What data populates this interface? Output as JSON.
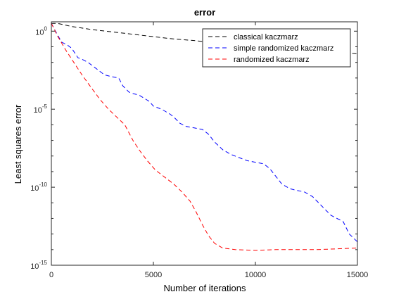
{
  "chart_data": {
    "type": "line",
    "title": "error",
    "xlabel": "Number of iterations",
    "ylabel": "Least squares error",
    "xlim": [
      0,
      15000
    ],
    "ylim_log10": [
      -15,
      0.6
    ],
    "yscale": "log",
    "x_ticks": [
      {
        "value": 0,
        "label": "0"
      },
      {
        "value": 5000,
        "label": "5000"
      },
      {
        "value": 10000,
        "label": "10000"
      },
      {
        "value": 15000,
        "label": "15000"
      }
    ],
    "y_ticks": [
      {
        "value": 0,
        "base": "10",
        "exp": "0"
      },
      {
        "value": -5,
        "base": "10",
        "exp": "-5"
      },
      {
        "value": -10,
        "base": "10",
        "exp": "-10"
      },
      {
        "value": -15,
        "base": "10",
        "exp": "-15"
      }
    ],
    "grid": false,
    "legend_position": "top-right",
    "series": [
      {
        "name": "classical kaczmarz",
        "color": "#000000",
        "dash": "6,4",
        "points": [
          [
            0,
            0.5
          ],
          [
            300,
            0.5
          ],
          [
            1000,
            0.3
          ],
          [
            2000,
            0.1
          ],
          [
            3000,
            -0.05
          ],
          [
            4000,
            -0.2
          ],
          [
            5000,
            -0.35
          ],
          [
            6000,
            -0.5
          ],
          [
            7000,
            -0.6
          ],
          [
            8000,
            -0.75
          ],
          [
            9000,
            -0.85
          ],
          [
            10000,
            -0.95
          ],
          [
            11000,
            -1.05
          ],
          [
            12000,
            -1.15
          ],
          [
            13000,
            -1.25
          ],
          [
            14000,
            -1.35
          ],
          [
            15000,
            -1.45
          ]
        ]
      },
      {
        "name": "simple randomized kaczmarz",
        "color": "#0000ff",
        "dash": "6,4",
        "points": [
          [
            0,
            0.5
          ],
          [
            200,
            0.0
          ],
          [
            500,
            -0.7
          ],
          [
            800,
            -0.9
          ],
          [
            1000,
            -1.1
          ],
          [
            1300,
            -1.7
          ],
          [
            1500,
            -1.8
          ],
          [
            1800,
            -2.0
          ],
          [
            2200,
            -2.4
          ],
          [
            2600,
            -2.8
          ],
          [
            2900,
            -2.9
          ],
          [
            3300,
            -3.0
          ],
          [
            3500,
            -3.5
          ],
          [
            3800,
            -3.9
          ],
          [
            4000,
            -4.0
          ],
          [
            4300,
            -4.1
          ],
          [
            4800,
            -4.5
          ],
          [
            5000,
            -4.8
          ],
          [
            5400,
            -5.0
          ],
          [
            5800,
            -5.3
          ],
          [
            6000,
            -5.5
          ],
          [
            6300,
            -5.9
          ],
          [
            6600,
            -6.1
          ],
          [
            7000,
            -6.2
          ],
          [
            7400,
            -6.3
          ],
          [
            7700,
            -6.6
          ],
          [
            8000,
            -7.1
          ],
          [
            8400,
            -7.6
          ],
          [
            8800,
            -7.9
          ],
          [
            9200,
            -8.1
          ],
          [
            9600,
            -8.3
          ],
          [
            10000,
            -8.4
          ],
          [
            10400,
            -8.5
          ],
          [
            10700,
            -8.8
          ],
          [
            11000,
            -9.3
          ],
          [
            11300,
            -9.8
          ],
          [
            11700,
            -10.1
          ],
          [
            12000,
            -10.2
          ],
          [
            12400,
            -10.3
          ],
          [
            12800,
            -10.6
          ],
          [
            13100,
            -11.0
          ],
          [
            13400,
            -11.4
          ],
          [
            13700,
            -11.8
          ],
          [
            14000,
            -12.0
          ],
          [
            14300,
            -12.2
          ],
          [
            14600,
            -13.0
          ],
          [
            15000,
            -13.5
          ]
        ]
      },
      {
        "name": "randomized kaczmarz",
        "color": "#ff0000",
        "dash": "6,4",
        "points": [
          [
            0,
            0.5
          ],
          [
            300,
            -0.3
          ],
          [
            700,
            -1.2
          ],
          [
            1100,
            -2.0
          ],
          [
            1500,
            -2.8
          ],
          [
            2000,
            -3.7
          ],
          [
            2400,
            -4.4
          ],
          [
            2800,
            -5.0
          ],
          [
            3200,
            -5.5
          ],
          [
            3600,
            -6.0
          ],
          [
            4000,
            -7.0
          ],
          [
            4300,
            -7.6
          ],
          [
            4700,
            -8.3
          ],
          [
            5100,
            -8.9
          ],
          [
            5600,
            -9.4
          ],
          [
            6000,
            -9.8
          ],
          [
            6400,
            -10.3
          ],
          [
            6800,
            -10.9
          ],
          [
            7100,
            -11.6
          ],
          [
            7400,
            -12.4
          ],
          [
            7700,
            -13.1
          ],
          [
            8000,
            -13.6
          ],
          [
            8400,
            -13.9
          ],
          [
            9000,
            -14.0
          ],
          [
            10000,
            -14.05
          ],
          [
            11000,
            -14.0
          ],
          [
            12000,
            -14.0
          ],
          [
            13000,
            -14.0
          ],
          [
            14000,
            -13.95
          ],
          [
            15000,
            -13.9
          ]
        ]
      }
    ]
  }
}
